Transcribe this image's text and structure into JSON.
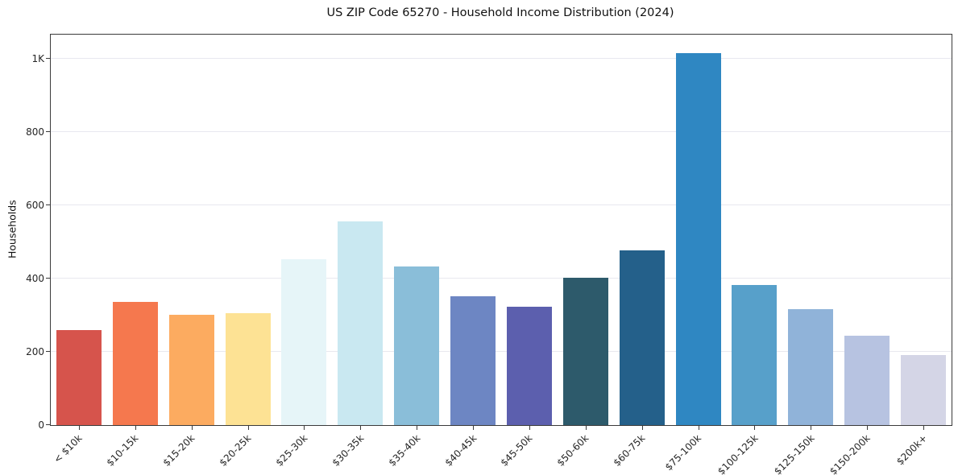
{
  "chart_data": {
    "type": "bar",
    "title": "US ZIP Code 65270 - Household Income Distribution (2024)",
    "xlabel": "",
    "ylabel": "Households",
    "categories": [
      "< $10k",
      "$10-15k",
      "$15-20k",
      "$20-25k",
      "$25-30k",
      "$30-35k",
      "$35-40k",
      "$40-45k",
      "$45-50k",
      "$50-60k",
      "$60-75k",
      "$75-100k",
      "$100-125k",
      "$125-150k",
      "$150-200k",
      "$200k+"
    ],
    "values": [
      260,
      335,
      300,
      305,
      452,
      555,
      432,
      352,
      322,
      402,
      477,
      1015,
      383,
      317,
      243,
      192
    ],
    "bar_colors": [
      "#d6544c",
      "#f5784e",
      "#fcab60",
      "#fde294",
      "#e6f5f8",
      "#c9e8f1",
      "#8abed9",
      "#6d86c3",
      "#5c5fae",
      "#2d5a6b",
      "#24608a",
      "#2f87c2",
      "#57a0ca",
      "#90b3d9",
      "#b7c3e1",
      "#d4d5e6"
    ],
    "ylim": [
      0,
      1065
    ],
    "yticks": [
      {
        "value": 0,
        "label": "0"
      },
      {
        "value": 200,
        "label": "200"
      },
      {
        "value": 400,
        "label": "400"
      },
      {
        "value": 600,
        "label": "600"
      },
      {
        "value": 800,
        "label": "800"
      },
      {
        "value": 1000,
        "label": "1K"
      }
    ],
    "grid": "horizontal",
    "legend": "none",
    "background_color": "#ffffff",
    "gridline_color": "#e8e8ef",
    "axis_color": "#3a3a3a"
  }
}
